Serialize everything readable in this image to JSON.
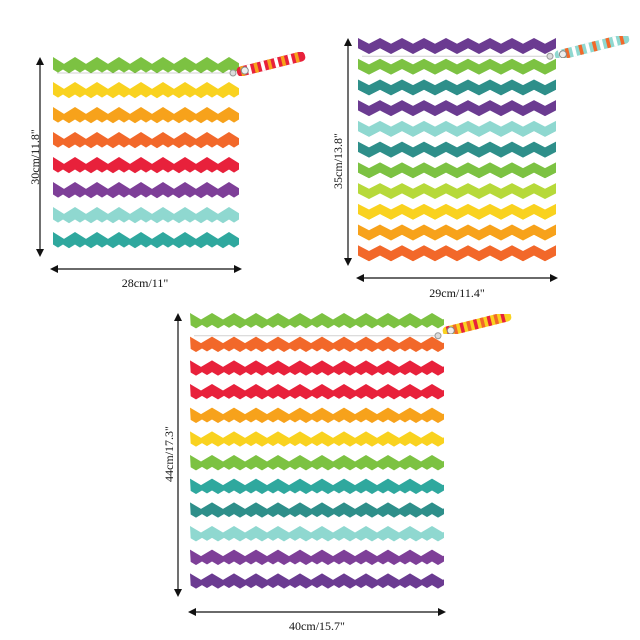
{
  "products": [
    {
      "id": "small",
      "width_label": "28cm/11\"",
      "height_label": "30cm/11.8\"",
      "stripe_colors": [
        "#7cc242",
        "#ffffff",
        "#f9d21f",
        "#ffffff",
        "#f7a21b",
        "#ffffff",
        "#f2682a",
        "#ffffff",
        "#e8213b",
        "#ffffff",
        "#7e3f98",
        "#ffffff",
        "#8fd8d0",
        "#ffffff",
        "#2fa89e",
        "#ffffff"
      ],
      "handle_colors": [
        "#e8213b",
        "#f7a21b",
        "#ffffff"
      ]
    },
    {
      "id": "medium",
      "width_label": "29cm/11.4\"",
      "height_label": "35cm/13.8\"",
      "stripe_colors": [
        "#6b3b91",
        "#ffffff",
        "#7cc242",
        "#ffffff",
        "#2e8f8a",
        "#ffffff",
        "#6b3b91",
        "#ffffff",
        "#8fd8d0",
        "#ffffff",
        "#2e8f8a",
        "#ffffff",
        "#7cc242",
        "#ffffff",
        "#b6d93a",
        "#ffffff",
        "#f9d21f",
        "#ffffff",
        "#f7a21b",
        "#ffffff",
        "#f2682a",
        "#ffffff"
      ],
      "handle_colors": [
        "#8fd8d0",
        "#ffffff",
        "#f2682a"
      ]
    },
    {
      "id": "large",
      "width_label": "40cm/15.7\"",
      "height_label": "44cm/17.3\"",
      "stripe_colors": [
        "#7cc242",
        "#ffffff",
        "#f2682a",
        "#ffffff",
        "#e8213b",
        "#ffffff",
        "#e8213b",
        "#ffffff",
        "#f7a21b",
        "#ffffff",
        "#f9d21f",
        "#ffffff",
        "#7cc242",
        "#ffffff",
        "#2fa89e",
        "#ffffff",
        "#2e8f8a",
        "#ffffff",
        "#8fd8d0",
        "#ffffff",
        "#7e3f98",
        "#ffffff",
        "#6b3b91",
        "#ffffff"
      ],
      "handle_colors": [
        "#f9d21f",
        "#e8213b",
        "#f2682a"
      ]
    }
  ]
}
